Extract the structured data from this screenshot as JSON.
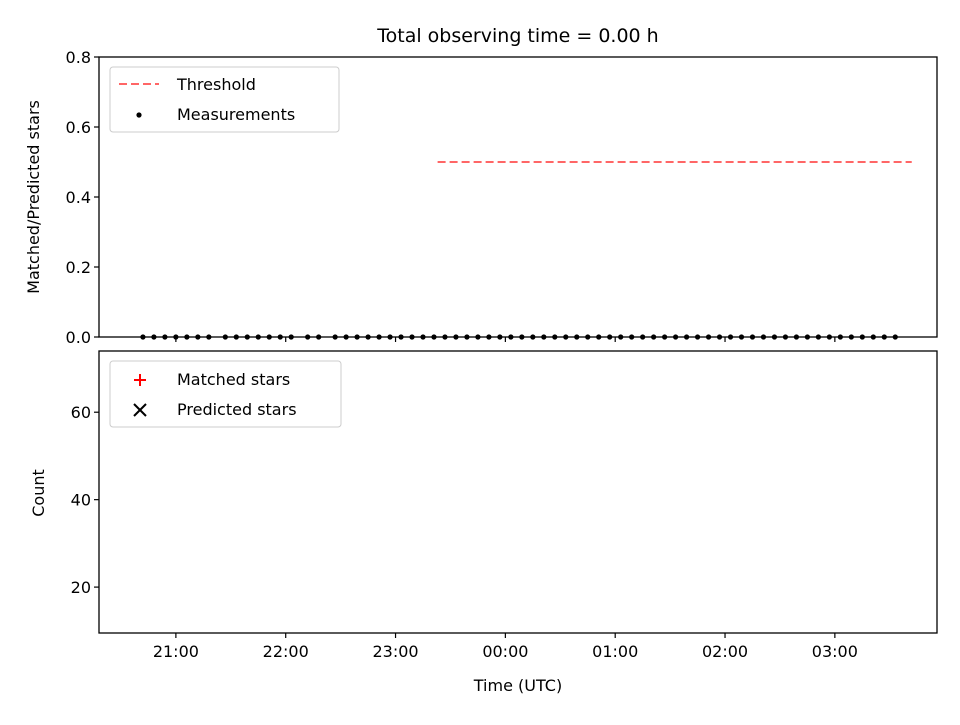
{
  "title": "Total observing time = 0.00 h",
  "chart_data": [
    {
      "type": "scatter",
      "ylabel": "Matched/Predicted stars",
      "xlabel": "",
      "ylim": [
        0,
        0.8
      ],
      "y_ticks": [
        "0.0",
        "0.2",
        "0.4",
        "0.6",
        "0.8"
      ],
      "y_tick_values": [
        0,
        0.2,
        0.4,
        0.6,
        0.8
      ],
      "legend_position": "top-left",
      "threshold": {
        "name": "Threshold",
        "value": 0.5,
        "x_start": -0.617,
        "x_end": 3.7,
        "color": "#ff6666"
      },
      "series": [
        {
          "name": "Measurements",
          "color": "#000000",
          "x": [
            -3.3,
            -3.2,
            -3.1,
            -3.0,
            -2.9,
            -2.8,
            -2.7,
            -2.55,
            -2.45,
            -2.35,
            -2.25,
            -2.15,
            -2.05,
            -1.95,
            -1.8,
            -1.7,
            -1.55,
            -1.45,
            -1.35,
            -1.25,
            -1.15,
            -1.05,
            -0.95,
            -0.85,
            -0.75,
            -0.65,
            -0.55,
            -0.45,
            -0.35,
            -0.25,
            -0.15,
            -0.05,
            0.05,
            0.15,
            0.25,
            0.35,
            0.45,
            0.55,
            0.65,
            0.75,
            0.85,
            0.95,
            1.05,
            1.15,
            1.25,
            1.35,
            1.45,
            1.55,
            1.65,
            1.75,
            1.85,
            1.95,
            2.05,
            2.15,
            2.25,
            2.35,
            2.45,
            2.55,
            2.65,
            2.75,
            2.85,
            2.95,
            3.05,
            3.15,
            3.25,
            3.35,
            3.45,
            3.55
          ],
          "y": [
            0,
            0,
            0,
            0,
            0,
            0,
            0,
            0,
            0,
            0,
            0,
            0,
            0,
            0,
            0,
            0,
            0,
            0,
            0,
            0,
            0,
            0,
            0,
            0,
            0,
            0,
            0,
            0,
            0,
            0,
            0,
            0,
            0,
            0,
            0,
            0,
            0,
            0,
            0,
            0,
            0,
            0,
            0,
            0,
            0,
            0,
            0,
            0,
            0,
            0,
            0,
            0,
            0,
            0,
            0,
            0,
            0,
            0,
            0,
            0,
            0,
            0,
            0,
            0,
            0,
            0,
            0,
            0
          ]
        }
      ]
    },
    {
      "type": "scatter",
      "ylabel": "Count",
      "xlabel": "Time (UTC)",
      "ylim": [
        9.5,
        74
      ],
      "y_ticks": [
        "20",
        "40",
        "60"
      ],
      "y_tick_values": [
        20,
        40,
        60
      ],
      "x_ticks": [
        "21:00",
        "22:00",
        "23:00",
        "00:00",
        "01:00",
        "02:00",
        "03:00"
      ],
      "x_tick_values": [
        -3,
        -2,
        -1,
        0,
        1,
        2,
        3
      ],
      "xlim": [
        -3.7,
        3.93
      ],
      "legend_position": "top-left",
      "series": [
        {
          "name": "Matched stars",
          "color": "#ff0000",
          "x": [],
          "y": []
        },
        {
          "name": "Predicted stars",
          "color": "#000000",
          "x": [],
          "y": []
        }
      ]
    }
  ]
}
